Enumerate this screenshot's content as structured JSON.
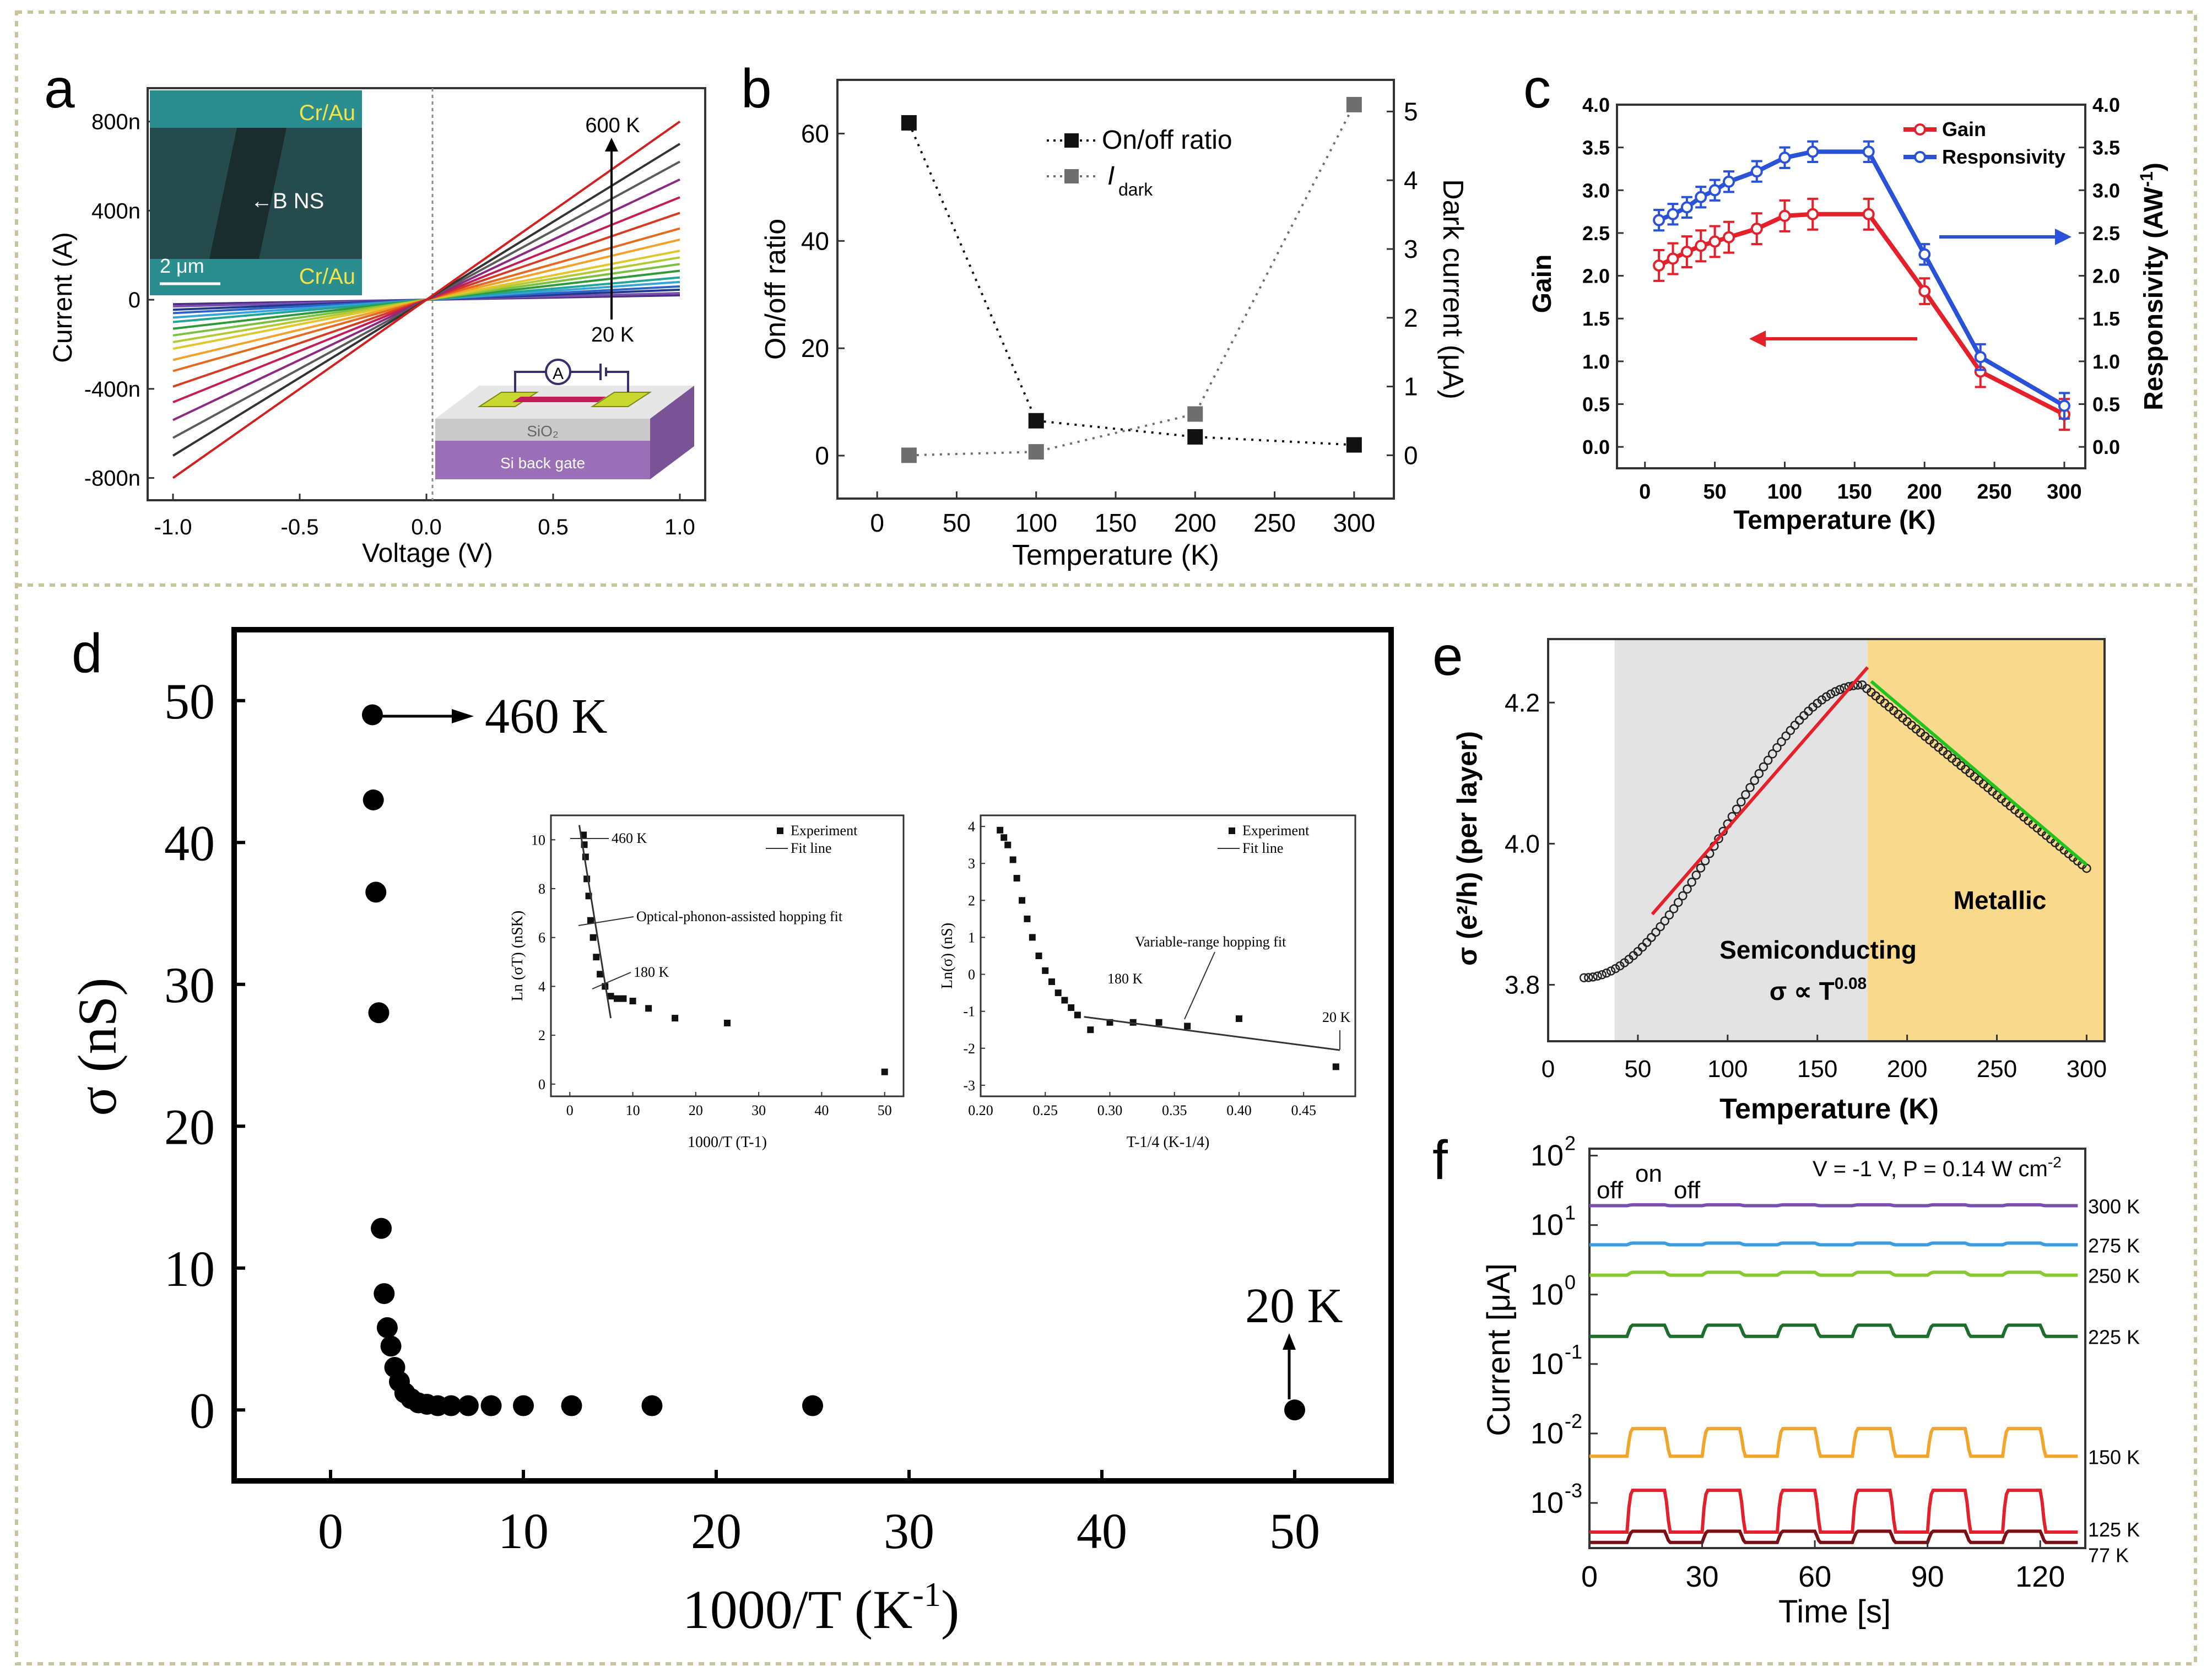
{
  "colors": {
    "frame": "#c9c29a",
    "red": "#e4202a",
    "blue": "#2952d9",
    "green": "#22c21f",
    "semiconducting_bg": "#e3e3e3",
    "metallic_bg": "#f9da8c",
    "sem_cyan": "#2a8e8f",
    "label_yellow": "#f1e34c"
  },
  "panels": {
    "a": "a",
    "b": "b",
    "c": "c",
    "d": "d",
    "e": "e",
    "f": "f"
  },
  "chart_data": [
    {
      "id": "a",
      "type": "line",
      "xlabel": "Voltage (V)",
      "ylabel": "Current (A)",
      "xlim": [
        -1.1,
        1.1
      ],
      "ylim": [
        -900,
        950
      ],
      "xticks": [
        "-1.0",
        "-0.5",
        "0.0",
        "0.5",
        "1.0"
      ],
      "yticks": [
        "800n",
        "400n",
        "0",
        "-400n",
        "-800n"
      ],
      "ytick_values": [
        800,
        400,
        0,
        -400,
        -800
      ],
      "annotation_top": "600 K",
      "annotation_bottom": "20 K",
      "slopes_nA_per_V": [
        20,
        30,
        45,
        60,
        80,
        100,
        130,
        160,
        190,
        220,
        270,
        320,
        390,
        460,
        540,
        620,
        700,
        800
      ],
      "line_colors": [
        "#4b2f83",
        "#7b4fb2",
        "#1f3a8a",
        "#2f62c8",
        "#35a4d9",
        "#23a49a",
        "#2f9a3a",
        "#7ac142",
        "#b4c933",
        "#e1c62c",
        "#f2a22a",
        "#e56a20",
        "#d63b24",
        "#c21d58",
        "#8b2a7f",
        "#5b5b5b",
        "#333333",
        "#d21f1f"
      ],
      "inset_sem": {
        "top_label": "Cr/Au",
        "bottom_label": "Cr/Au",
        "arrow_label": "B NS",
        "scale_label": "2 μm"
      },
      "inset_device": {
        "ammeter": "A",
        "oxide": "SiO₂",
        "gate": "Si back gate"
      }
    },
    {
      "id": "b",
      "type": "scatter",
      "xlabel": "Temperature (K)",
      "ylabel_left": "On/off ratio",
      "ylabel_right": "Dark current (μA)",
      "xlim": [
        -25,
        325
      ],
      "ylim_left": [
        -8,
        70
      ],
      "ylim_right": [
        -0.63,
        5.46
      ],
      "xticks": [
        "0",
        "50",
        "100",
        "150",
        "200",
        "250",
        "300"
      ],
      "yticks_left": [
        "0",
        "20",
        "40",
        "60"
      ],
      "yticks_right": [
        "0",
        "1",
        "2",
        "3",
        "4",
        "5"
      ],
      "series": [
        {
          "name": "On/off ratio",
          "axis": "left",
          "color": "#111111",
          "x": [
            20,
            100,
            200,
            300
          ],
          "y": [
            62,
            6.5,
            3.5,
            2
          ]
        },
        {
          "name": "I",
          "subscript": "dark",
          "axis": "right",
          "color": "#6e6e6e",
          "x": [
            20,
            100,
            200,
            300
          ],
          "y": [
            0,
            0.05,
            0.6,
            5.1
          ]
        }
      ]
    },
    {
      "id": "c",
      "type": "line",
      "xlabel": "Temperature (K)",
      "ylabel_left": "Gain",
      "ylabel_right": "Responsivity (AW",
      "ylabel_right_sup": "-1",
      "xlim": [
        -20,
        315
      ],
      "ylim": [
        -0.25,
        4.0
      ],
      "xticks": [
        "0",
        "50",
        "100",
        "150",
        "200",
        "250",
        "300"
      ],
      "yticks": [
        "0.0",
        "0.5",
        "1.0",
        "1.5",
        "2.0",
        "2.5",
        "3.0",
        "3.5",
        "4.0"
      ],
      "series": [
        {
          "name": "Gain",
          "color": "#e4202a",
          "x": [
            10,
            20,
            30,
            40,
            50,
            60,
            80,
            100,
            120,
            160,
            200,
            240,
            300
          ],
          "y": [
            2.12,
            2.2,
            2.28,
            2.35,
            2.4,
            2.45,
            2.55,
            2.7,
            2.72,
            2.72,
            1.82,
            0.88,
            0.38
          ],
          "err": [
            0.18,
            0.18,
            0.18,
            0.18,
            0.18,
            0.18,
            0.18,
            0.18,
            0.18,
            0.18,
            0.15,
            0.18,
            0.18
          ]
        },
        {
          "name": "Responsivity",
          "color": "#2952d9",
          "x": [
            10,
            20,
            30,
            40,
            50,
            60,
            80,
            100,
            120,
            160,
            200,
            240,
            300
          ],
          "y": [
            2.65,
            2.72,
            2.8,
            2.92,
            3.0,
            3.1,
            3.22,
            3.38,
            3.45,
            3.45,
            2.25,
            1.05,
            0.48
          ],
          "err": [
            0.12,
            0.12,
            0.12,
            0.12,
            0.12,
            0.12,
            0.12,
            0.12,
            0.12,
            0.12,
            0.12,
            0.15,
            0.15
          ]
        }
      ]
    },
    {
      "id": "d",
      "type": "scatter",
      "xlabel": "1000/T (K",
      "xlabel_sup": "-1",
      "ylabel": "σ (nS)",
      "xlim": [
        -5,
        55
      ],
      "ylim": [
        -5,
        55
      ],
      "xticks": [
        "0",
        "10",
        "20",
        "30",
        "40",
        "50"
      ],
      "yticks": [
        "0",
        "10",
        "20",
        "30",
        "40",
        "50"
      ],
      "annotation_top": "460 K",
      "annotation_bottom": "20 K",
      "x": [
        2.17,
        2.22,
        2.35,
        2.5,
        2.63,
        2.78,
        2.94,
        3.13,
        3.33,
        3.57,
        3.85,
        4.17,
        4.55,
        5.0,
        5.56,
        6.25,
        7.14,
        8.33,
        10.0,
        12.5,
        16.67,
        25.0,
        50.0
      ],
      "y": [
        49,
        43,
        36.5,
        28,
        12.8,
        8.2,
        5.8,
        4.5,
        3,
        2,
        1.2,
        0.8,
        0.5,
        0.4,
        0.3,
        0.3,
        0.3,
        0.3,
        0.3,
        0.3,
        0.3,
        0.3,
        0.0
      ],
      "insets": [
        {
          "xlabel": "1000/T (T",
          "xlabel_sup": "-1",
          "ylabel": "Ln (σT) (nSK)",
          "xlim": [
            -3,
            53
          ],
          "ylim": [
            -0.5,
            11
          ],
          "xticks": [
            "0",
            "10",
            "20",
            "30",
            "40",
            "50"
          ],
          "yticks": [
            "0",
            "2",
            "4",
            "6",
            "8",
            "10"
          ],
          "legend_points": "Experiment",
          "legend_line": "Fit line",
          "labels": [
            "460 K",
            "Optical-phonon-assisted hopping fit",
            "180 K"
          ],
          "x": [
            2.17,
            2.3,
            2.5,
            2.7,
            3.0,
            3.3,
            3.7,
            4.2,
            4.8,
            5.6,
            6.5,
            7.5,
            8.5,
            10,
            12.5,
            16.7,
            25,
            50
          ],
          "y": [
            10.2,
            9.8,
            9.3,
            8.4,
            7.7,
            6.7,
            6.0,
            5.2,
            4.5,
            4.0,
            3.6,
            3.5,
            3.5,
            3.4,
            3.1,
            2.7,
            2.5,
            0.5
          ],
          "fit": {
            "x": [
              1.5,
              6.5
            ],
            "y": [
              10.6,
              2.7
            ]
          }
        },
        {
          "xlabel": "T",
          "xlabel_sup": "-1/4",
          "xlabel_tail": " (K",
          "xlabel_tail_sup": "-1/4",
          "ylabel": "Ln(σ) (nS)",
          "xlim": [
            0.2,
            0.49
          ],
          "ylim": [
            -3.3,
            4.3
          ],
          "xticks": [
            "0.20",
            "0.25",
            "0.30",
            "0.35",
            "0.40",
            "0.45"
          ],
          "yticks": [
            "4",
            "3",
            "2",
            "1",
            "0",
            "-1",
            "-2",
            "-3"
          ],
          "legend_points": "Experiment",
          "legend_line": "Fit line",
          "labels": [
            "Variable-range hopping fit",
            "180 K",
            "20 K"
          ],
          "x": [
            0.215,
            0.218,
            0.221,
            0.225,
            0.228,
            0.232,
            0.236,
            0.24,
            0.245,
            0.25,
            0.255,
            0.26,
            0.265,
            0.27,
            0.275,
            0.285,
            0.3,
            0.318,
            0.338,
            0.36,
            0.4,
            0.475
          ],
          "y": [
            3.9,
            3.7,
            3.5,
            3.1,
            2.6,
            2.0,
            1.5,
            1.0,
            0.5,
            0.1,
            -0.2,
            -0.5,
            -0.7,
            -0.9,
            -1.1,
            -1.5,
            -1.3,
            -1.3,
            -1.3,
            -1.4,
            -1.2,
            -2.5
          ],
          "fit": {
            "x": [
              0.28,
              0.478
            ],
            "y": [
              -1.15,
              -2.05
            ]
          }
        }
      ]
    },
    {
      "id": "e",
      "type": "scatter",
      "xlabel": "Temperature (K)",
      "ylabel": "σ (e²/h) (per layer)",
      "xlim": [
        0,
        310
      ],
      "ylim": [
        3.72,
        4.29
      ],
      "xticks": [
        "0",
        "50",
        "100",
        "150",
        "200",
        "250",
        "300"
      ],
      "yticks": [
        "3.8",
        "4.0",
        "4.2"
      ],
      "region_semiconducting": {
        "from": 37,
        "to": 178,
        "label": "Semiconducting",
        "formula": "σ ∝ T",
        "formula_sup": "0.08"
      },
      "region_metallic": {
        "from": 178,
        "to": 310,
        "label": "Metallic"
      },
      "fit_semiconducting": {
        "x": [
          58,
          178
        ],
        "y": [
          3.9,
          4.25
        ]
      },
      "fit_metallic": {
        "x": [
          180,
          300
        ],
        "y": [
          4.23,
          3.97
        ]
      }
    },
    {
      "id": "f",
      "type": "line",
      "xlabel": "Time [s]",
      "ylabel": "Current [μA]",
      "xlim": [
        0,
        132
      ],
      "ylim_log10": [
        -3.65,
        2.1
      ],
      "xticks": [
        "0",
        "30",
        "60",
        "90",
        "120"
      ],
      "ytick_exponents": [
        "2",
        "1",
        "0",
        "-1",
        "-2",
        "-3"
      ],
      "ytick_base": "10",
      "condition": "V = -1 V, P = 0.14 W cm",
      "condition_sup": "-2",
      "switch_labels": [
        "off",
        "on",
        "off"
      ],
      "series": [
        {
          "name": "300 K",
          "color": "#7a4fb0",
          "base": 19,
          "amp": 0.03
        },
        {
          "name": "275 K",
          "color": "#3d9be0",
          "base": 5.2,
          "amp": 0.06
        },
        {
          "name": "250 K",
          "color": "#8ac832",
          "base": 1.9,
          "amp": 0.1
        },
        {
          "name": "225 K",
          "color": "#1d6e2c",
          "base": 0.25,
          "amp": 0.45
        },
        {
          "name": "150 K",
          "color": "#f2a52c",
          "base": 0.0047,
          "amp": 1.5
        },
        {
          "name": "125 K",
          "color": "#e4202a",
          "base": 0.00038,
          "amp": 3.0
        },
        {
          "name": "77 K",
          "color": "#7a1016",
          "base": 0.00027,
          "amp": 0.45
        }
      ]
    }
  ]
}
